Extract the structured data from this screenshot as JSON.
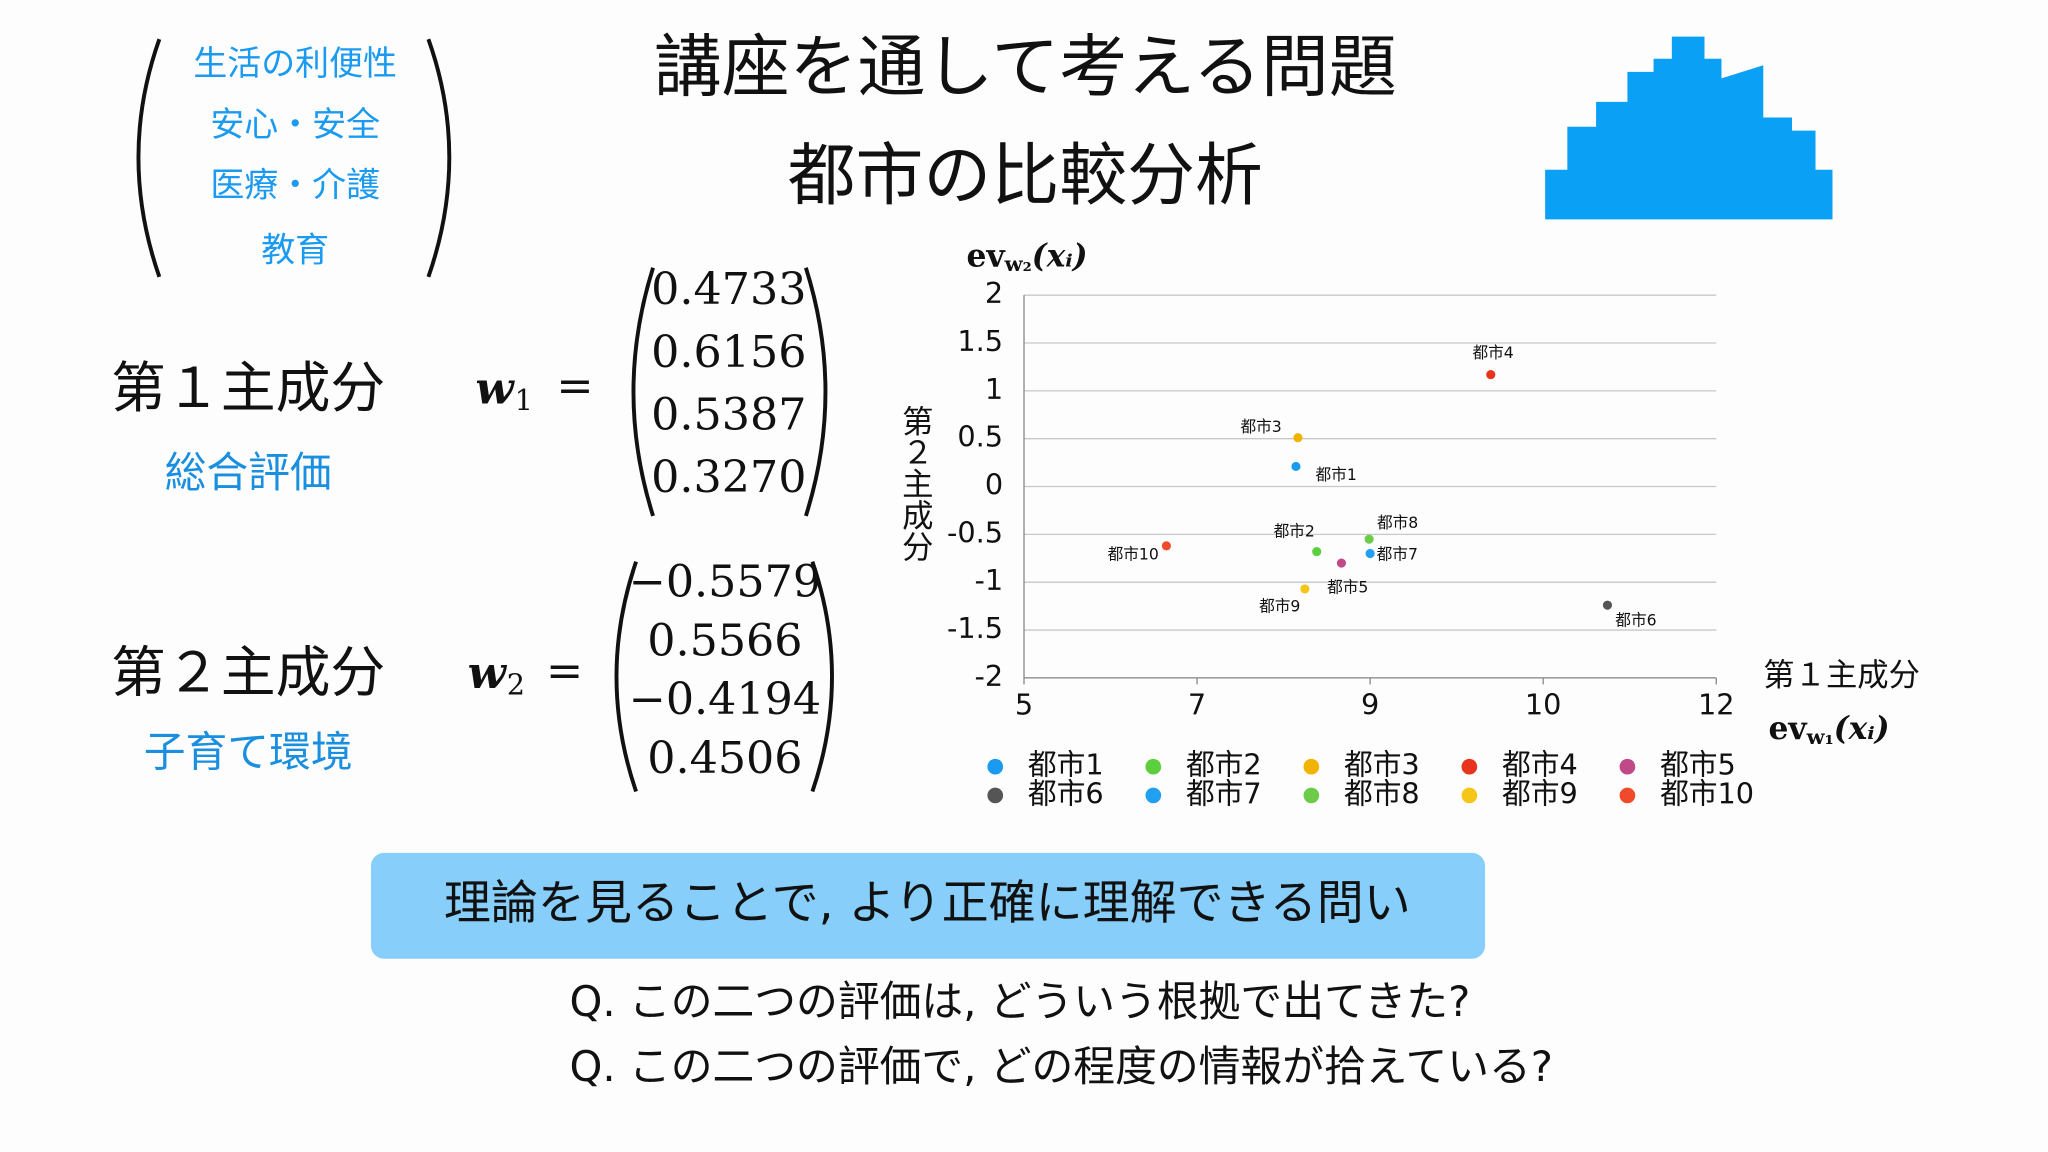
{
  "header": {
    "title_line1": "講座を通して考える問題",
    "title_line2": "都市の比較分析"
  },
  "criteria": [
    "生活の利便性",
    "安心・安全",
    "医療・介護",
    "教育"
  ],
  "components": [
    {
      "name": "第１主成分",
      "meaning": "総合評価",
      "symbol": "w",
      "subscript": "1",
      "relation": "=",
      "vector": [
        "0.4733",
        "0.6156",
        "0.5387",
        "0.3270"
      ]
    },
    {
      "name": "第２主成分",
      "meaning": "子育て環境",
      "symbol": "w",
      "subscript": "2",
      "relation": "=",
      "vector": [
        "−0.5579",
        "0.5566",
        "−0.4194",
        "0.4506"
      ]
    }
  ],
  "chart_data": {
    "type": "scatter",
    "x_label": "第１主成分",
    "y_label": "第２主成分",
    "x_formula": {
      "base": "ev",
      "sub": "w₁",
      "arg": "(xᵢ)"
    },
    "y_formula": {
      "base": "ev",
      "sub": "w₂",
      "arg": "(xᵢ)"
    },
    "xlim": [
      5,
      12
    ],
    "xticks": [
      5,
      {
        "value": 6.75,
        "label": "7"
      },
      {
        "value": 8.5,
        "label": "9"
      },
      {
        "value": 10.25,
        "label": "10"
      },
      12
    ],
    "ylim": [
      -2,
      2
    ],
    "yticks": [
      2,
      1.5,
      1,
      0.5,
      0,
      -0.5,
      -1,
      -1.5,
      -2
    ],
    "grid": true,
    "legend": "bottom",
    "series": [
      {
        "name": "都市1",
        "color": "#1a9af0",
        "x": [
          7.75
        ],
        "values": [
          0.21
        ]
      },
      {
        "name": "都市2",
        "color": "#5ccf3e",
        "x": [
          7.96
        ],
        "values": [
          -0.68
        ]
      },
      {
        "name": "都市3",
        "color": "#f0b400",
        "x": [
          7.77
        ],
        "values": [
          0.51
        ]
      },
      {
        "name": "都市4",
        "color": "#e8341c",
        "x": [
          9.72
        ],
        "values": [
          1.17
        ]
      },
      {
        "name": "都市5",
        "color": "#c04a88",
        "x": [
          8.21
        ],
        "values": [
          -0.8
        ]
      },
      {
        "name": "都市6",
        "color": "#555555",
        "x": [
          10.9
        ],
        "values": [
          -1.24
        ]
      },
      {
        "name": "都市7",
        "color": "#22a0f0",
        "x": [
          8.5
        ],
        "values": [
          -0.7
        ]
      },
      {
        "name": "都市8",
        "color": "#6ccc4a",
        "x": [
          8.49
        ],
        "values": [
          -0.55
        ]
      },
      {
        "name": "都市9",
        "color": "#f5c518",
        "x": [
          7.84
        ],
        "values": [
          -1.07
        ]
      },
      {
        "name": "都市10",
        "color": "#ef4a2a",
        "x": [
          6.44
        ],
        "values": [
          -0.62
        ]
      }
    ]
  },
  "callout": "理論を見ることで, より正確に理解できる問い",
  "questions": [
    "Q. この二つの評価は, どういう根拠で出てきた?",
    "Q. この二つの評価で, どの程度の情報が拾えている?"
  ]
}
